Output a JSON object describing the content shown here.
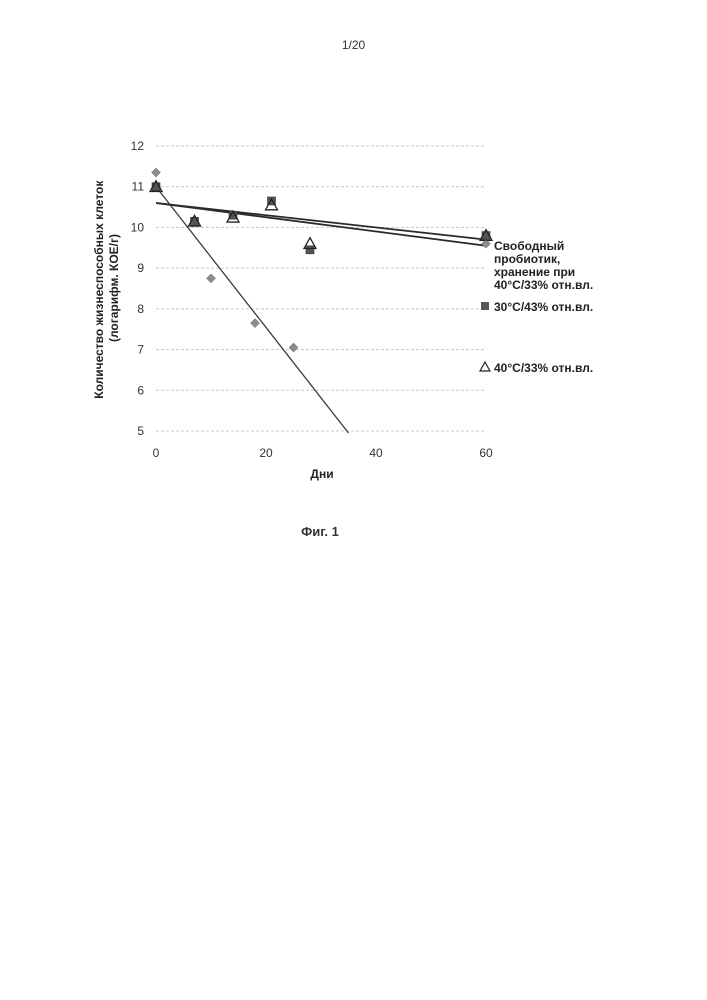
{
  "page": {
    "page_number": "1/20",
    "figure_caption": "Фиг. 1"
  },
  "chart_data": {
    "type": "scatter",
    "xlabel": "Дни",
    "ylabel_lines": [
      "Количество жизнеспособных клеток",
      "(логарифм. КОЕ/г)"
    ],
    "xlim": [
      0,
      60
    ],
    "ylim": [
      5,
      12
    ],
    "x_ticks": [
      "0",
      "20",
      "40",
      "60"
    ],
    "y_ticks": [
      "5",
      "6",
      "7",
      "8",
      "9",
      "10",
      "11",
      "12"
    ],
    "grid": "horizontal",
    "legend_placement": "right",
    "series": [
      {
        "name_lines": [
          "Свободный",
          "пробиотик,",
          "хранение при",
          "40°C/33% отн.вл."
        ],
        "marker": "diamond",
        "color": "#8c8c8c",
        "points": [
          [
            0,
            11.35
          ],
          [
            10,
            8.75
          ],
          [
            18,
            7.65
          ],
          [
            25,
            7.05
          ],
          [
            60,
            9.6
          ]
        ],
        "trendline": {
          "from": [
            0,
            11.0
          ],
          "to": [
            35,
            4.95
          ]
        }
      },
      {
        "name_lines": [
          "30°C/43% отн.вл."
        ],
        "marker": "square",
        "color": "#555555",
        "points": [
          [
            0,
            11.0
          ],
          [
            7,
            10.15
          ],
          [
            14,
            10.3
          ],
          [
            21,
            10.65
          ],
          [
            28,
            9.45
          ],
          [
            60,
            9.8
          ]
        ],
        "trendline": {
          "from": [
            0,
            10.6
          ],
          "to": [
            60,
            9.55
          ]
        }
      },
      {
        "name_lines": [
          "40°C/33% отн.вл."
        ],
        "marker": "triangle",
        "color": "#222222",
        "points": [
          [
            0,
            11.0
          ],
          [
            7,
            10.15
          ],
          [
            14,
            10.25
          ],
          [
            21,
            10.55
          ],
          [
            28,
            9.6
          ],
          [
            60,
            9.8
          ]
        ],
        "trendline": {
          "from": [
            0,
            10.6
          ],
          "to": [
            60,
            9.7
          ]
        }
      }
    ]
  }
}
